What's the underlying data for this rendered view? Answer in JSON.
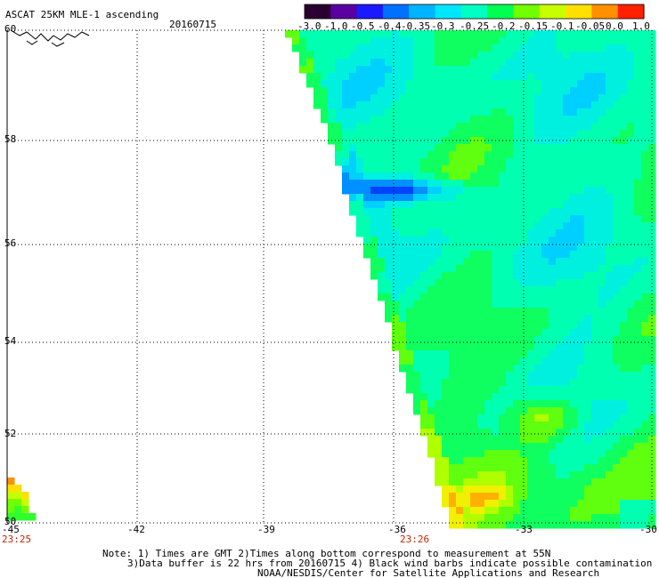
{
  "header": {
    "title": "ASCAT 25KM MLE-1 ascending",
    "date": "20160715"
  },
  "colorbar": {
    "labels": [
      "-3.0",
      "-1.0",
      "-0.5",
      "-0.4",
      "-0.35",
      "-0.3",
      "-0.25",
      "-0.2",
      "-0.15",
      "-0.1",
      "-0.05",
      "0.0",
      "1.0"
    ],
    "colors": [
      "#2a0030",
      "#5a00a0",
      "#1a1aff",
      "#0070ff",
      "#00b4ff",
      "#00e6ff",
      "#00ffc0",
      "#00ff50",
      "#70ff00",
      "#c8ff00",
      "#ffe000",
      "#ff9000",
      "#ff2000"
    ]
  },
  "map": {
    "lat_labels": [
      "60",
      "58",
      "56",
      "54",
      "52",
      "50"
    ],
    "lon_labels": [
      "-45",
      "-42",
      "-39",
      "-36",
      "-33",
      "-30"
    ],
    "time_labels": [
      "23:25",
      "23:26"
    ],
    "lat_range": [
      50,
      60
    ],
    "lon_range": [
      -45,
      -30
    ]
  },
  "notes": {
    "line1": "Note: 1) Times are GMT 2)Times along bottom correspond to measurement at 55N",
    "line2": "3)Data buffer is 22 hrs from 20160715 4) Black wind barbs indicate possible contamination",
    "line3": "NOAA/NESDIS/Center for Satellite Applications and Research"
  }
}
